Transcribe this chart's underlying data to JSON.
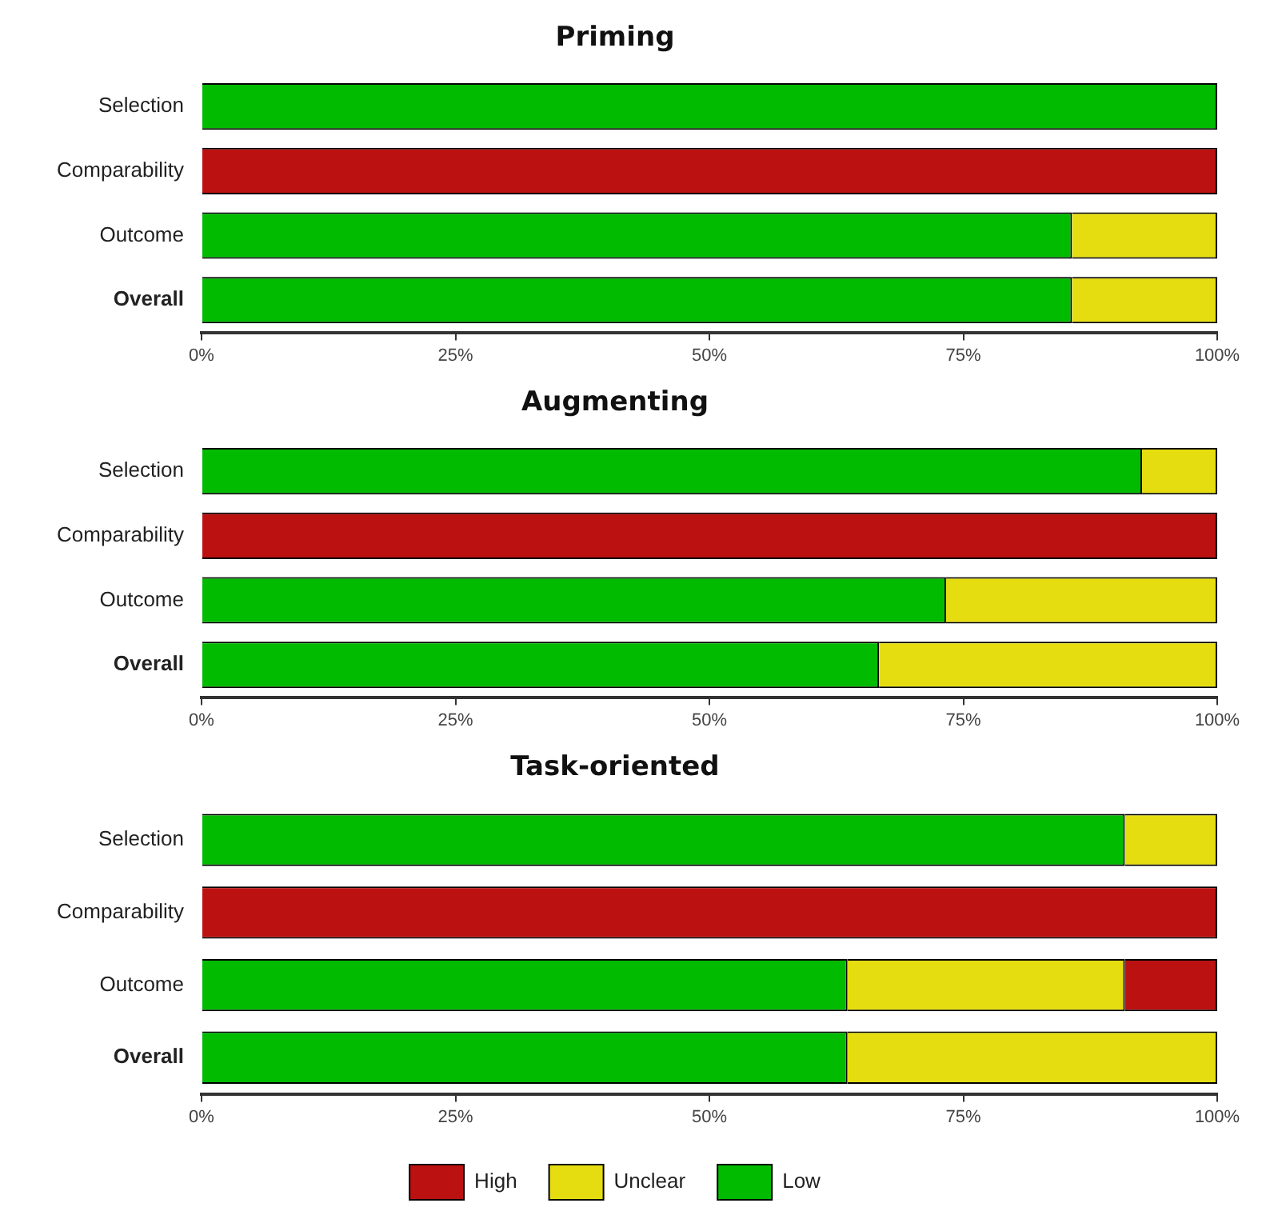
{
  "chart_data": [
    {
      "type": "bar",
      "title": "Priming",
      "orientation": "horizontal",
      "stacked": true,
      "categories": [
        "Selection",
        "Comparability",
        "Outcome",
        "Overall"
      ],
      "xlim": [
        0,
        100
      ],
      "xticks": [
        {
          "value": 0,
          "label": "0%"
        },
        {
          "value": 25,
          "label": "25%"
        },
        {
          "value": 50,
          "label": "50%"
        },
        {
          "value": 75,
          "label": "75%"
        },
        {
          "value": 100,
          "label": "100%"
        }
      ],
      "legend": false,
      "series": [
        {
          "color": "#00bb00",
          "values": [
            100,
            0,
            85.7,
            85.7
          ]
        },
        {
          "color": "#e5dd10",
          "values": [
            0,
            0,
            14.3,
            14.3
          ]
        },
        {
          "color": "#bb1111",
          "values": [
            0,
            100,
            0,
            0
          ]
        }
      ]
    },
    {
      "type": "bar",
      "title": "Augmenting",
      "orientation": "horizontal",
      "stacked": true,
      "categories": [
        "Selection",
        "Comparability",
        "Outcome",
        "Overall"
      ],
      "xlim": [
        0,
        100
      ],
      "xticks": [
        {
          "value": 0,
          "label": "0%"
        },
        {
          "value": 25,
          "label": "25%"
        },
        {
          "value": 50,
          "label": "50%"
        },
        {
          "value": 75,
          "label": "75%"
        },
        {
          "value": 100,
          "label": "100%"
        }
      ],
      "legend": false,
      "series": [
        {
          "color": "#00bb00",
          "values": [
            92.6,
            0,
            73.3,
            66.7
          ]
        },
        {
          "color": "#e5dd10",
          "values": [
            7.4,
            0,
            26.7,
            33.3
          ]
        },
        {
          "color": "#bb1111",
          "values": [
            0,
            100,
            0,
            0
          ]
        }
      ]
    },
    {
      "type": "bar",
      "title": "Task-oriented",
      "orientation": "horizontal",
      "stacked": true,
      "categories": [
        "Selection",
        "Comparability",
        "Outcome",
        "Overall"
      ],
      "xlim": [
        0,
        100
      ],
      "xticks": [
        {
          "value": 0,
          "label": "0%"
        },
        {
          "value": 25,
          "label": "25%"
        },
        {
          "value": 50,
          "label": "50%"
        },
        {
          "value": 75,
          "label": "75%"
        },
        {
          "value": 100,
          "label": "100%"
        }
      ],
      "legend": "bottom",
      "series": [
        {
          "name": "Low",
          "color": "#00bb00",
          "values": [
            90.9,
            0,
            63.6,
            63.6
          ]
        },
        {
          "name": "Unclear",
          "color": "#e5dd10",
          "values": [
            9.1,
            0,
            27.3,
            36.4
          ]
        },
        {
          "name": "High",
          "color": "#bb1111",
          "values": [
            0,
            100,
            9.1,
            0
          ]
        }
      ]
    }
  ]
}
